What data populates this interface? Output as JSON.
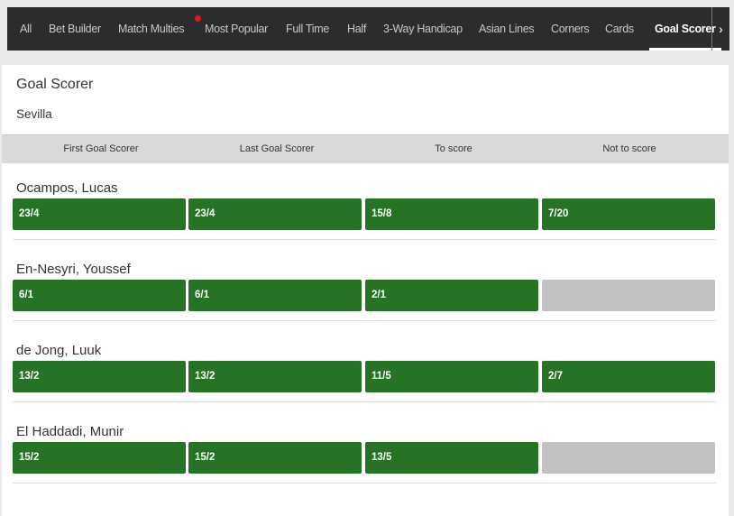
{
  "nav": {
    "tabs": [
      {
        "label": "All"
      },
      {
        "label": "Bet Builder"
      },
      {
        "label": "Match Multies",
        "badge": true
      },
      {
        "label": "Most Popular"
      },
      {
        "label": "Full Time"
      },
      {
        "label": "Half"
      },
      {
        "label": "3-Way Handicap"
      },
      {
        "label": "Asian Lines"
      },
      {
        "label": "Corners"
      },
      {
        "label": "Cards"
      },
      {
        "label": "Goal Scorer",
        "active": true
      }
    ],
    "next_icon": "chevron-right-icon",
    "arrow": "›"
  },
  "market": {
    "title": "Goal Scorer",
    "team": "Sevilla",
    "columns": [
      "First Goal Scorer",
      "Last Goal Scorer",
      "To score",
      "Not to score"
    ],
    "players": [
      {
        "name": "Ocampos, Lucas",
        "odds": [
          "23/4",
          "23/4",
          "15/8",
          "7/20"
        ]
      },
      {
        "name": "En-Nesyri, Youssef",
        "odds": [
          "6/1",
          "6/1",
          "2/1",
          null
        ]
      },
      {
        "name": "de Jong, Luuk",
        "odds": [
          "13/2",
          "13/2",
          "11/5",
          "2/7"
        ]
      },
      {
        "name": "El Haddadi, Munir",
        "odds": [
          "15/2",
          "15/2",
          "13/5",
          null
        ]
      }
    ]
  },
  "colors": {
    "odds_green": "#267326",
    "suspended_gray": "#c2c2c2",
    "badge_red": "#e8141a"
  }
}
